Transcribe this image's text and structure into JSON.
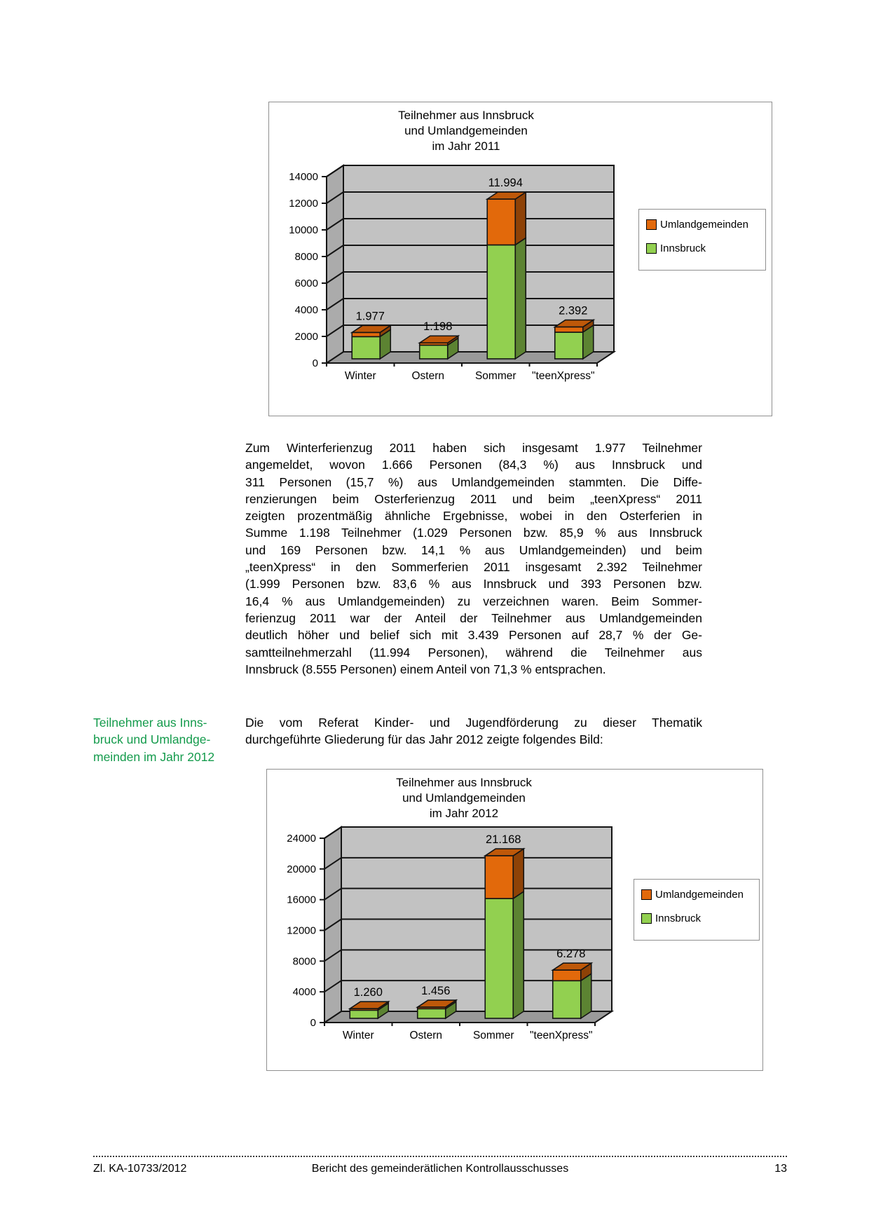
{
  "side_note": {
    "color": "#149B4C",
    "lines": [
      "Teilnehmer aus Inns-",
      "bruck und Umlandge-",
      "meinden im Jahr 2012"
    ]
  },
  "paragraph1": {
    "lines": [
      "Zum Winterferienzug 2011 haben sich insgesamt 1.977 Teilnehmer",
      "angemeldet, wovon 1.666 Personen (84,3 %) aus Innsbruck und",
      "311 Personen (15,7 %) aus Umlandgemeinden stammten. Die Diffe-",
      "renzierungen beim Osterferienzug 2011 und beim „teenXpress“ 2011",
      "zeigten prozentmäßig ähnliche Ergebnisse, wobei in den Osterferien in",
      "Summe 1.198 Teilnehmer (1.029 Personen bzw. 85,9 % aus Innsbruck",
      "und 169 Personen bzw. 14,1 % aus Umlandgemeinden) und beim",
      "„teenXpress“ in den Sommerferien 2011 insgesamt 2.392 Teilnehmer",
      "(1.999 Personen bzw. 83,6 % aus Innsbruck und 393 Personen bzw.",
      "16,4 % aus Umlandgemeinden) zu verzeichnen waren. Beim Sommer-",
      "ferienzug 2011 war der Anteil der Teilnehmer aus Umlandgemeinden",
      "deutlich höher und belief sich mit 3.439 Personen auf 28,7 % der Ge-",
      "samtteilnehmerzahl (11.994 Personen), während die Teilnehmer aus",
      "Innsbruck (8.555 Personen) einem Anteil von 71,3 % entsprachen."
    ]
  },
  "paragraph2": {
    "lines": [
      "Die vom Referat Kinder- und Jugendförderung zu dieser Thematik",
      "durchgeführte Gliederung für das Jahr 2012 zeigte folgendes Bild:"
    ]
  },
  "footer": {
    "left": "Zl. KA-10733/2012",
    "center": "Bericht des gemeinderätlichen Kontrollausschusses",
    "page_number": "13"
  },
  "colors": {
    "innsbruck_green": "#92D050",
    "umland_orange": "#E2690B",
    "back_wall": "#C2C2C2",
    "left_wall": "#ABABAB",
    "floor": "#9A9A9A"
  },
  "chart_data": [
    {
      "type": "bar",
      "stacked": true,
      "title_lines": [
        "Teilnehmer aus Innsbruck",
        "und Umlandgemeinden",
        "im Jahr 2011"
      ],
      "categories": [
        "Winter",
        "Ostern",
        "Sommer",
        "\"teenXpress\""
      ],
      "series": [
        {
          "name": "Innsbruck",
          "color": "#92D050",
          "values": [
            1666,
            1029,
            8555,
            1999
          ]
        },
        {
          "name": "Umlandgemeinden",
          "color": "#E2690B",
          "values": [
            311,
            169,
            3439,
            393
          ]
        }
      ],
      "total_labels": [
        "1.977",
        "1.198",
        "11.994",
        "2.392"
      ],
      "ylim": [
        0,
        14000
      ],
      "ytick_step": 2000,
      "grid": true,
      "legend_position": "right",
      "legend": [
        {
          "label": "Umlandgemeinden",
          "color": "#E2690B"
        },
        {
          "label": "Innsbruck",
          "color": "#92D050"
        }
      ]
    },
    {
      "type": "bar",
      "stacked": true,
      "title_lines": [
        "Teilnehmer aus Innsbruck",
        "und Umlandgemeinden",
        "im Jahr 2012"
      ],
      "categories": [
        "Winter",
        "Ostern",
        "Sommer",
        "\"teenXpress\""
      ],
      "series": [
        {
          "name": "Innsbruck",
          "color": "#92D050",
          "values": [
            1060,
            1250,
            15600,
            4900
          ]
        },
        {
          "name": "Umlandgemeinden",
          "color": "#E2690B",
          "values": [
            200,
            206,
            5568,
            1378
          ]
        }
      ],
      "total_labels": [
        "1.260",
        "1.456",
        "21.168",
        "6.278"
      ],
      "ylim": [
        0,
        24000
      ],
      "ytick_step": 4000,
      "grid": true,
      "legend_position": "right",
      "legend": [
        {
          "label": "Umlandgemeinden",
          "color": "#E2690B"
        },
        {
          "label": "Innsbruck",
          "color": "#92D050"
        }
      ]
    }
  ]
}
